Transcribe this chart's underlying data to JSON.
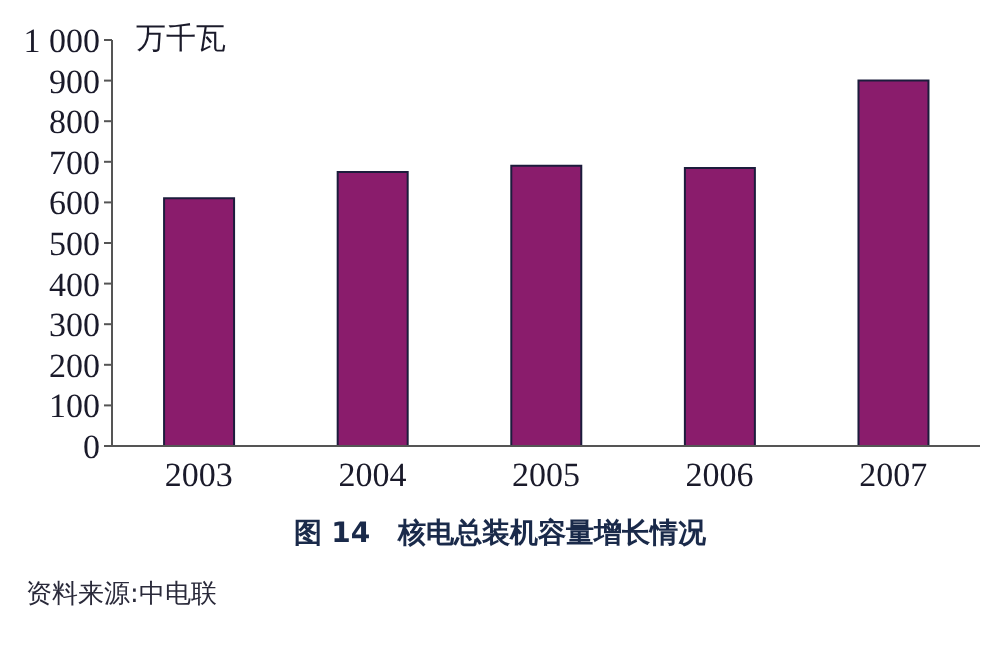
{
  "chart_data": {
    "type": "bar",
    "title": "图 14　核电总装机容量增长情况",
    "ylabel": "万千瓦",
    "annotations": [
      "资料来源:中电联"
    ],
    "categories": [
      "2003",
      "2004",
      "2005",
      "2006",
      "2007"
    ],
    "values": [
      610,
      675,
      690,
      685,
      900
    ],
    "color": "#8a1c6c",
    "ylim": [
      0,
      1000
    ],
    "yticks": [
      0,
      100,
      200,
      300,
      400,
      500,
      600,
      700,
      800,
      900,
      {
        "value": 1000,
        "label": "1 000"
      }
    ],
    "grid": false
  }
}
